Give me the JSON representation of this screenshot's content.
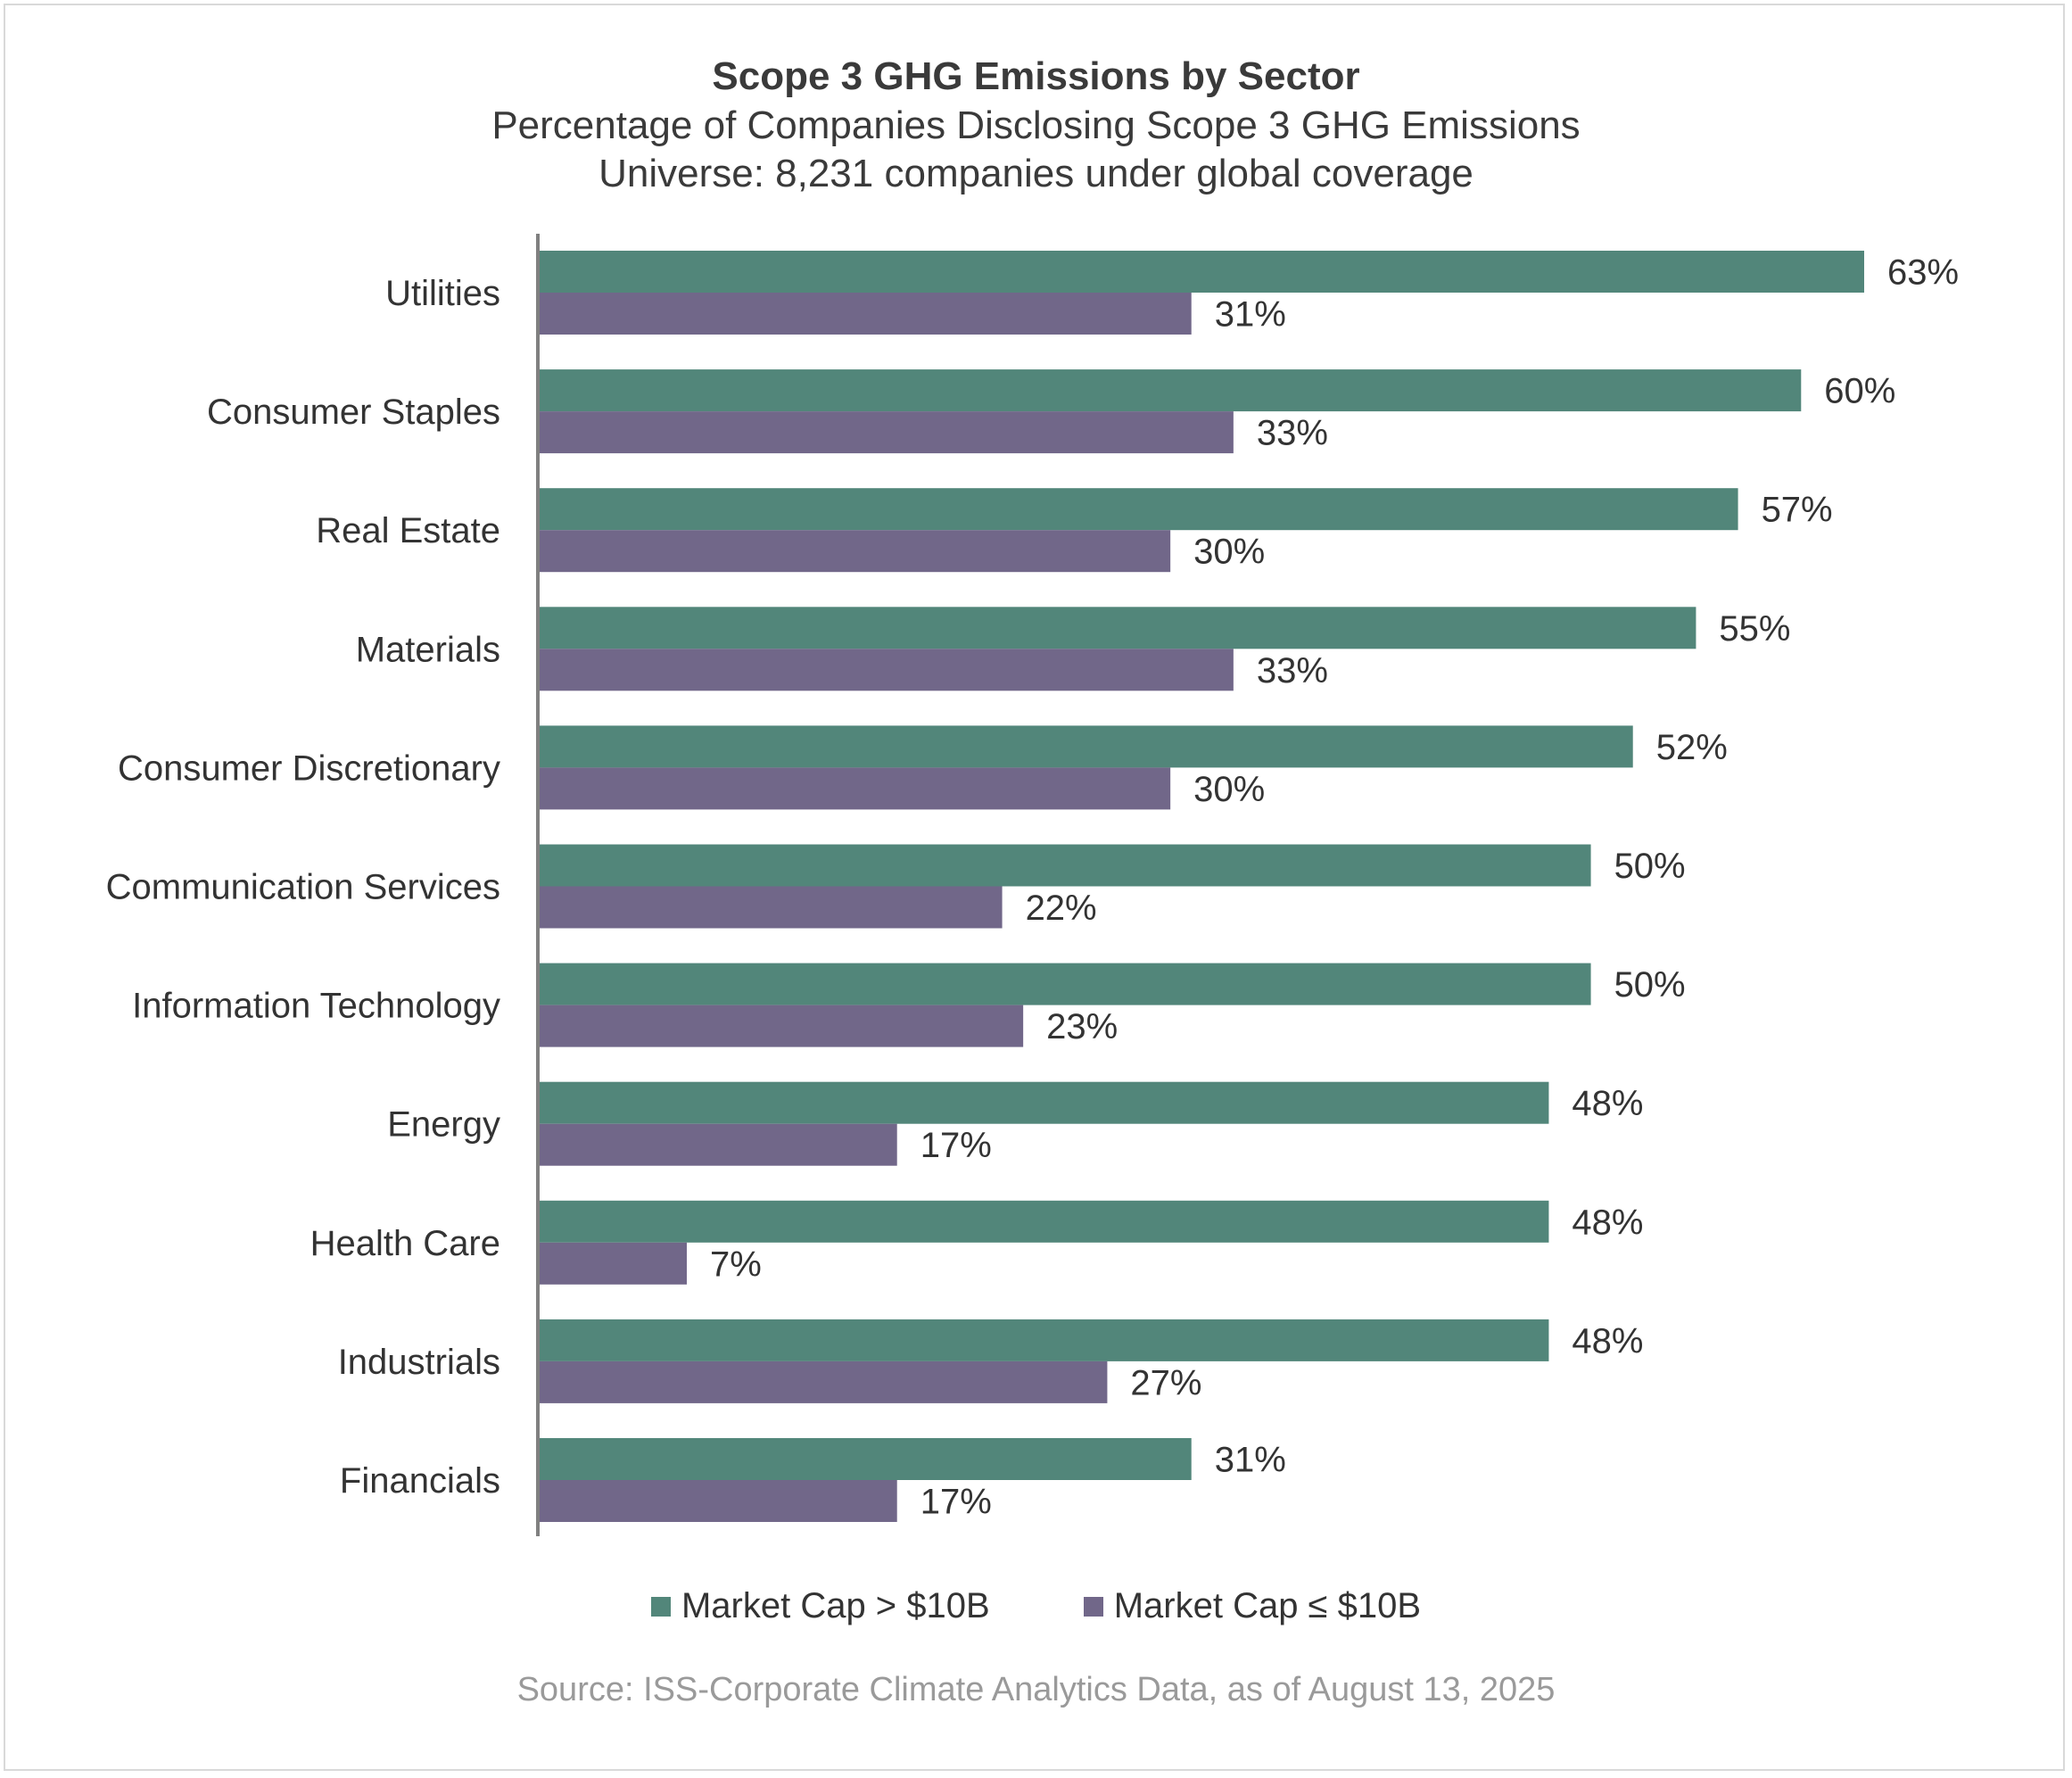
{
  "chart_data": {
    "type": "bar",
    "orientation": "horizontal",
    "title": "Scope 3 GHG Emissions by Sector",
    "subtitle": [
      "Percentage of Companies Disclosing Scope 3 GHG Emissions",
      "Universe: 8,231 companies under global coverage"
    ],
    "categories": [
      "Utilities",
      "Consumer Staples",
      "Real Estate",
      "Materials",
      "Consumer Discretionary",
      "Communication Services",
      "Information Technology",
      "Energy",
      "Health Care",
      "Industrials",
      "Financials"
    ],
    "series": [
      {
        "name": "Market Cap > $10B",
        "color": "#52867a",
        "values": [
          63,
          60,
          57,
          55,
          52,
          50,
          50,
          48,
          48,
          48,
          31
        ],
        "labels": [
          "63%",
          "60%",
          "57%",
          "55%",
          "52%",
          "50%",
          "50%",
          "48%",
          "48%",
          "48%",
          "31%"
        ]
      },
      {
        "name": "Market Cap ≤ $10B",
        "color": "#716789",
        "values": [
          31,
          33,
          30,
          33,
          30,
          22,
          23,
          17,
          7,
          27,
          17
        ],
        "labels": [
          "31%",
          "33%",
          "30%",
          "33%",
          "30%",
          "22%",
          "23%",
          "17%",
          "7%",
          "27%",
          "17%"
        ]
      }
    ],
    "xlim": [
      0,
      63
    ],
    "grid": false,
    "legend_position": "bottom",
    "source": "Source: ISS-Corporate Climate Analytics Data, as of August 13, 2025"
  }
}
